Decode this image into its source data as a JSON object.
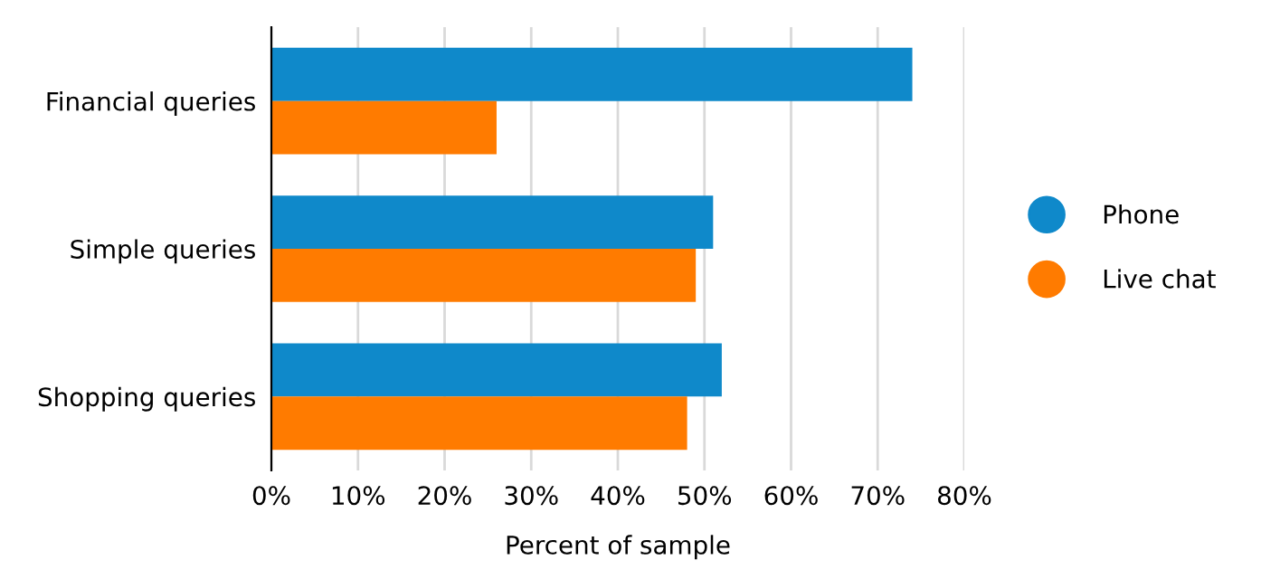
{
  "chart_data": {
    "type": "bar",
    "orientation": "horizontal",
    "xlabel": "Percent of sample",
    "categories": [
      "Financial queries",
      "Simple queries",
      "Shopping queries"
    ],
    "series": [
      {
        "name": "Phone",
        "color": "#0f89ca",
        "values": [
          74,
          51,
          52
        ]
      },
      {
        "name": "Live chat",
        "color": "#ff7b00",
        "values": [
          26,
          49,
          48
        ]
      }
    ],
    "xlim": [
      0,
      80
    ],
    "xticks": [
      {
        "value": 0,
        "label": "0%"
      },
      {
        "value": 10,
        "label": "10%"
      },
      {
        "value": 20,
        "label": "20%"
      },
      {
        "value": 30,
        "label": "30%"
      },
      {
        "value": 40,
        "label": "40%"
      },
      {
        "value": 50,
        "label": "50%"
      },
      {
        "value": 60,
        "label": "60%"
      },
      {
        "value": 70,
        "label": "70%"
      },
      {
        "value": 80,
        "label": "80%"
      }
    ],
    "grid": "x",
    "legend": "right"
  }
}
